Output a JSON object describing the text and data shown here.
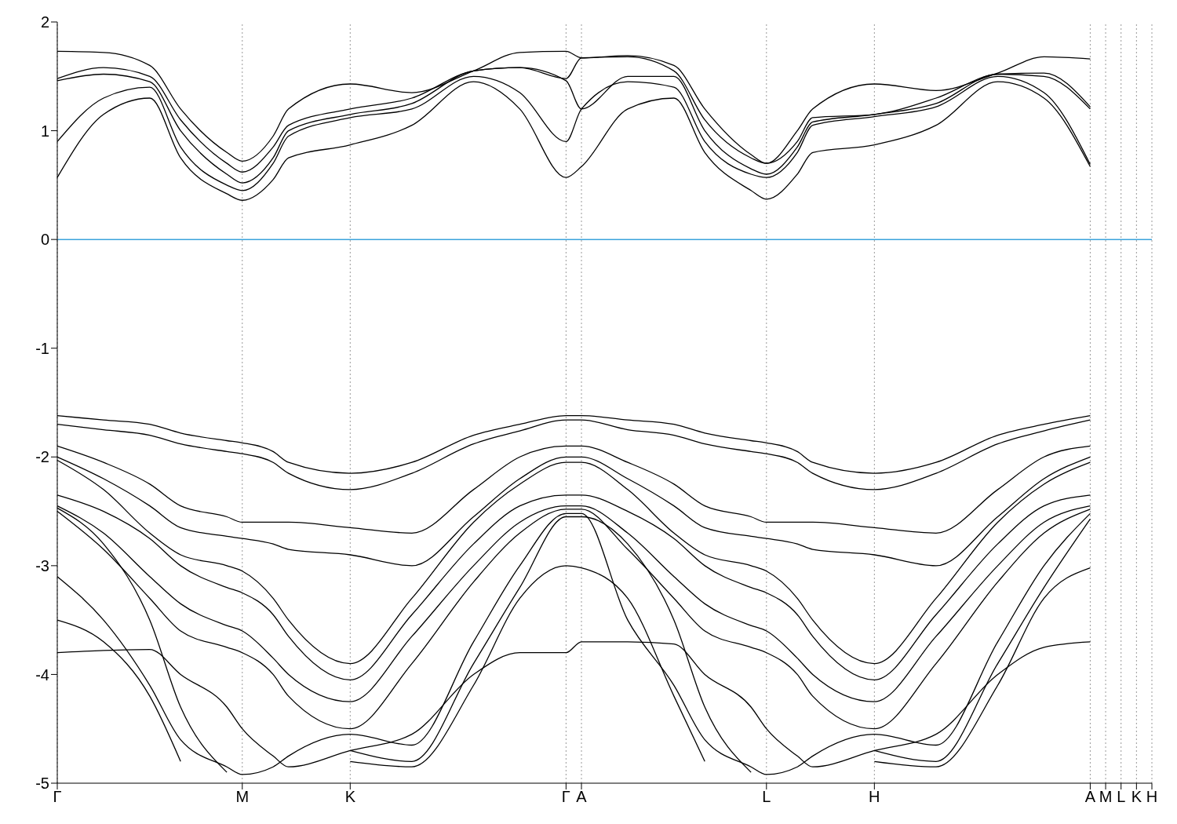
{
  "chart_data": {
    "type": "line",
    "marker": "none",
    "line_style": "solid",
    "grid": "x",
    "categories": [
      "Γ",
      null,
      null,
      null,
      null,
      null,
      null,
      null,
      null,
      null,
      null,
      null,
      "M",
      null,
      null,
      null,
      null,
      null,
      null,
      "K",
      null,
      null,
      null,
      null,
      null,
      null,
      null,
      null,
      null,
      null,
      null,
      null,
      null,
      "Γ",
      "A",
      null,
      null,
      null,
      null,
      null,
      null,
      null,
      null,
      null,
      null,
      null,
      "L",
      null,
      null,
      null,
      null,
      null,
      null,
      "H",
      null,
      null,
      null,
      null,
      null,
      null,
      null,
      null,
      null,
      null,
      null,
      null,
      null,
      "A",
      "M",
      "L",
      "K",
      "H"
    ],
    "ylim": [
      -5,
      2
    ],
    "yticks": [
      -5,
      -4,
      -3,
      -2,
      -1,
      0,
      1,
      2
    ],
    "ref_lines": [
      {
        "axis": "y",
        "value": 0,
        "color": "#3ba3dc"
      }
    ],
    "series": [
      {
        "color": "#000000",
        "values": [
          0.57,
          null,
          null,
          1.15,
          null,
          null,
          1.3,
          null,
          0.75,
          null,
          null,
          0.42,
          0.36,
          null,
          0.55,
          0.75,
          null,
          null,
          null,
          0.87,
          null,
          null,
          null,
          1.05,
          null,
          null,
          null,
          1.45,
          null,
          null,
          1.2,
          null,
          null,
          0.57,
          0.67,
          null,
          null,
          1.2,
          null,
          null,
          1.3,
          null,
          0.8,
          null,
          null,
          0.45,
          0.37,
          null,
          0.6,
          0.8,
          null,
          null,
          null,
          0.87,
          null,
          null,
          null,
          1.05,
          null,
          null,
          null,
          1.45,
          null,
          null,
          1.3,
          null,
          null,
          0.67,
          null,
          null,
          null,
          null
        ]
      },
      {
        "color": "#000000",
        "values": [
          0.9,
          null,
          null,
          1.3,
          null,
          null,
          1.4,
          null,
          0.85,
          null,
          null,
          0.5,
          0.45,
          null,
          0.7,
          0.95,
          null,
          null,
          null,
          1.12,
          null,
          null,
          null,
          1.2,
          null,
          null,
          null,
          1.5,
          null,
          null,
          1.35,
          null,
          null,
          0.9,
          1.2,
          null,
          null,
          1.45,
          null,
          null,
          1.4,
          null,
          0.9,
          null,
          null,
          0.6,
          0.57,
          null,
          0.8,
          1.05,
          null,
          null,
          null,
          1.13,
          null,
          null,
          null,
          1.22,
          null,
          null,
          null,
          1.5,
          null,
          null,
          1.35,
          null,
          null,
          0.69,
          null,
          null,
          null,
          null
        ]
      },
      {
        "color": "#000000",
        "values": [
          1.46,
          null,
          null,
          1.52,
          null,
          null,
          1.45,
          null,
          1,
          null,
          null,
          0.6,
          0.52,
          null,
          0.75,
          1,
          null,
          null,
          null,
          1.15,
          null,
          null,
          null,
          1.25,
          null,
          null,
          null,
          1.55,
          null,
          null,
          1.58,
          null,
          null,
          1.46,
          1.2,
          null,
          null,
          1.5,
          null,
          null,
          1.5,
          null,
          1,
          null,
          null,
          0.65,
          0.6,
          null,
          0.85,
          1.08,
          null,
          null,
          null,
          1.15,
          null,
          null,
          null,
          1.25,
          null,
          null,
          null,
          1.52,
          null,
          null,
          1.5,
          null,
          null,
          1.2,
          null,
          null,
          null,
          null
        ]
      },
      {
        "color": "#000000",
        "values": [
          1.48,
          null,
          null,
          1.58,
          null,
          null,
          1.5,
          null,
          1.1,
          null,
          null,
          0.7,
          0.62,
          null,
          0.85,
          1.05,
          null,
          null,
          null,
          1.2,
          null,
          null,
          null,
          1.3,
          null,
          null,
          null,
          1.55,
          null,
          null,
          1.58,
          null,
          null,
          1.48,
          1.67,
          null,
          null,
          1.68,
          null,
          null,
          1.55,
          null,
          1.1,
          null,
          null,
          0.75,
          0.7,
          null,
          0.9,
          1.12,
          null,
          null,
          null,
          1.15,
          null,
          null,
          null,
          1.3,
          null,
          null,
          null,
          1.52,
          null,
          null,
          1.53,
          null,
          null,
          1.22,
          null,
          null,
          null,
          null
        ]
      },
      {
        "color": "#000000",
        "values": [
          1.73,
          null,
          null,
          1.72,
          null,
          null,
          1.6,
          null,
          1.2,
          null,
          null,
          0.8,
          0.72,
          null,
          0.95,
          1.2,
          null,
          null,
          null,
          1.43,
          null,
          null,
          null,
          1.35,
          null,
          null,
          null,
          1.55,
          null,
          null,
          1.72,
          null,
          null,
          1.73,
          1.67,
          null,
          null,
          1.69,
          null,
          null,
          1.6,
          null,
          1.2,
          null,
          null,
          0.78,
          0.7,
          null,
          1,
          1.2,
          null,
          null,
          null,
          1.43,
          null,
          null,
          null,
          1.37,
          null,
          null,
          null,
          1.53,
          null,
          null,
          1.68,
          null,
          null,
          1.66,
          null,
          null,
          null,
          null
        ]
      },
      {
        "color": "#000000",
        "values": [
          -1.62,
          null,
          null,
          -1.66,
          null,
          null,
          -1.7,
          null,
          -1.78,
          null,
          null,
          -1.85,
          -1.87,
          null,
          -1.95,
          -2.05,
          null,
          null,
          null,
          -2.15,
          null,
          null,
          null,
          -2.05,
          null,
          null,
          null,
          -1.8,
          null,
          null,
          -1.7,
          null,
          null,
          -1.62,
          -1.62,
          null,
          null,
          -1.66,
          null,
          null,
          -1.7,
          null,
          -1.78,
          null,
          null,
          -1.85,
          -1.87,
          null,
          -1.95,
          -2.05,
          null,
          null,
          null,
          -2.15,
          null,
          null,
          null,
          -2.05,
          null,
          null,
          null,
          -1.8,
          null,
          null,
          -1.7,
          null,
          null,
          -1.62,
          null,
          null,
          null,
          null
        ]
      },
      {
        "color": "#000000",
        "values": [
          -1.7,
          null,
          null,
          -1.75,
          null,
          null,
          -1.8,
          null,
          -1.88,
          null,
          null,
          -1.95,
          -1.97,
          null,
          -2.05,
          -2.15,
          null,
          null,
          null,
          -2.3,
          null,
          null,
          null,
          -2.15,
          null,
          null,
          null,
          -1.88,
          null,
          null,
          -1.76,
          null,
          null,
          -1.66,
          -1.66,
          null,
          null,
          -1.75,
          null,
          null,
          -1.8,
          null,
          -1.88,
          null,
          null,
          -1.95,
          -1.97,
          null,
          -2.05,
          -2.15,
          null,
          null,
          null,
          -2.3,
          null,
          null,
          null,
          -2.15,
          null,
          null,
          null,
          -1.88,
          null,
          null,
          -1.76,
          null,
          null,
          -1.66,
          null,
          null,
          null,
          null
        ]
      },
      {
        "color": "#000000",
        "values": [
          -1.9,
          null,
          null,
          -2.05,
          null,
          null,
          -2.25,
          null,
          -2.45,
          null,
          null,
          -2.55,
          -2.6,
          null,
          -2.6,
          -2.6,
          null,
          null,
          null,
          -2.65,
          null,
          null,
          null,
          -2.7,
          null,
          null,
          null,
          -2.3,
          null,
          null,
          -2,
          null,
          null,
          -1.9,
          -1.9,
          null,
          null,
          -2.05,
          null,
          null,
          -2.25,
          null,
          -2.45,
          null,
          null,
          -2.55,
          -2.6,
          null,
          -2.6,
          -2.6,
          null,
          null,
          null,
          -2.65,
          null,
          null,
          null,
          -2.7,
          null,
          null,
          null,
          -2.3,
          null,
          null,
          -2,
          null,
          null,
          -1.9,
          null,
          null,
          null,
          null
        ]
      },
      {
        "color": "#000000",
        "values": [
          -2,
          null,
          null,
          -2.2,
          null,
          null,
          -2.45,
          null,
          -2.65,
          null,
          null,
          -2.73,
          -2.75,
          null,
          -2.8,
          -2.85,
          null,
          null,
          null,
          -2.9,
          null,
          null,
          null,
          -3,
          null,
          null,
          null,
          -2.55,
          null,
          null,
          -2.2,
          null,
          null,
          -2,
          -2,
          null,
          null,
          -2.2,
          null,
          null,
          -2.45,
          null,
          -2.65,
          null,
          null,
          -2.73,
          -2.75,
          null,
          -2.8,
          -2.85,
          null,
          null,
          null,
          -2.9,
          null,
          null,
          null,
          -3,
          null,
          null,
          null,
          -2.55,
          null,
          null,
          -2.2,
          null,
          null,
          -2,
          null,
          null,
          null,
          null
        ]
      },
      {
        "color": "#000000",
        "values": [
          -2.03,
          null,
          null,
          -2.3,
          null,
          null,
          -2.7,
          null,
          -2.9,
          null,
          null,
          -3,
          -3.05,
          null,
          -3.3,
          -3.5,
          null,
          null,
          null,
          -3.9,
          null,
          null,
          null,
          -3.3,
          null,
          null,
          null,
          -2.6,
          null,
          null,
          -2.25,
          null,
          null,
          -2.05,
          -2.05,
          null,
          null,
          -2.3,
          null,
          null,
          -2.7,
          null,
          -2.9,
          null,
          null,
          -3,
          -3.05,
          null,
          -3.3,
          -3.5,
          null,
          null,
          null,
          -3.9,
          null,
          null,
          null,
          -3.3,
          null,
          null,
          null,
          -2.6,
          null,
          null,
          -2.25,
          null,
          null,
          -2.05,
          null,
          null,
          null,
          null
        ]
      },
      {
        "color": "#000000",
        "values": [
          -2.35,
          null,
          null,
          -2.5,
          null,
          null,
          -2.75,
          null,
          -3,
          null,
          null,
          -3.2,
          -3.25,
          null,
          -3.45,
          -3.65,
          null,
          null,
          null,
          -4.05,
          null,
          null,
          null,
          -3.45,
          null,
          null,
          null,
          -2.8,
          null,
          null,
          -2.45,
          null,
          null,
          -2.35,
          -2.35,
          null,
          null,
          -2.5,
          null,
          null,
          -2.75,
          null,
          -3,
          null,
          null,
          -3.2,
          -3.25,
          null,
          -3.45,
          -3.65,
          null,
          null,
          null,
          -4.05,
          null,
          null,
          null,
          -3.45,
          null,
          null,
          null,
          -2.8,
          null,
          null,
          -2.45,
          null,
          null,
          -2.35,
          null,
          null,
          null,
          null
        ]
      },
      {
        "color": "#000000",
        "values": [
          -2.45,
          null,
          null,
          -2.7,
          null,
          null,
          -3.1,
          null,
          -3.35,
          null,
          null,
          -3.55,
          -3.6,
          null,
          -3.85,
          -4,
          null,
          null,
          null,
          -4.25,
          null,
          null,
          null,
          -3.65,
          null,
          null,
          null,
          -3,
          null,
          null,
          -2.6,
          null,
          null,
          -2.45,
          -2.45,
          null,
          null,
          -2.7,
          null,
          null,
          -3.1,
          null,
          -3.35,
          null,
          null,
          -3.55,
          -3.6,
          null,
          -3.85,
          -4,
          null,
          null,
          null,
          -4.25,
          null,
          null,
          null,
          -3.65,
          null,
          null,
          null,
          -3,
          null,
          null,
          -2.6,
          null,
          null,
          -2.45,
          null,
          null,
          null,
          null
        ]
      },
      {
        "color": "#000000",
        "values": [
          -2.5,
          null,
          null,
          -2.85,
          null,
          null,
          -3.3,
          null,
          -3.6,
          null,
          null,
          -3.75,
          -3.8,
          null,
          -4,
          -4.2,
          null,
          null,
          null,
          -4.5,
          null,
          null,
          null,
          -3.9,
          null,
          null,
          null,
          -3.15,
          null,
          null,
          -2.7,
          null,
          null,
          -2.48,
          -2.48,
          null,
          null,
          -2.85,
          null,
          null,
          -3.3,
          null,
          -3.6,
          null,
          null,
          -3.75,
          -3.8,
          null,
          -4,
          -4.2,
          null,
          null,
          null,
          -4.5,
          null,
          null,
          null,
          -3.9,
          null,
          null,
          null,
          -3.15,
          null,
          null,
          -2.7,
          null,
          null,
          -2.48,
          null,
          null,
          null,
          null
        ]
      },
      {
        "color": "#000000",
        "values": [
          -3.8,
          null,
          null,
          -3.78,
          null,
          null,
          -3.77,
          null,
          -4,
          null,
          null,
          -4.3,
          -4.5,
          null,
          -4.75,
          -4.85,
          null,
          null,
          null,
          -4.7,
          null,
          null,
          null,
          -4.55,
          null,
          null,
          null,
          -4,
          null,
          null,
          -3.8,
          null,
          null,
          -3.8,
          -3.7,
          null,
          null,
          -3.7,
          null,
          null,
          -3.72,
          null,
          -4,
          null,
          null,
          -4.3,
          -4.5,
          null,
          -4.75,
          -4.85,
          null,
          null,
          null,
          -4.7,
          null,
          null,
          null,
          -4.55,
          null,
          null,
          null,
          -4,
          null,
          null,
          -3.75,
          null,
          null,
          -3.7,
          null,
          null,
          null,
          null
        ]
      },
      {
        "color": "#000000",
        "values": [
          -3.1,
          null,
          null,
          -3.5,
          null,
          null,
          -4.1,
          null,
          -4.6,
          null,
          null,
          -4.85,
          -4.92,
          null,
          -4.85,
          -4.75,
          null,
          null,
          null,
          -4.55,
          null,
          null,
          null,
          -4.65,
          null,
          null,
          null,
          -3.7,
          null,
          null,
          -3,
          null,
          null,
          -2.52,
          -2.52,
          null,
          null,
          -3.5,
          null,
          null,
          -4.1,
          null,
          -4.6,
          null,
          null,
          -4.85,
          -4.92,
          null,
          -4.85,
          -4.75,
          null,
          null,
          null,
          -4.55,
          null,
          null,
          null,
          -4.65,
          null,
          null,
          null,
          -3.7,
          null,
          null,
          -3,
          null,
          null,
          -2.52,
          null,
          null,
          null,
          null
        ]
      },
      {
        "color": "#000000",
        "values": [
          -2.47,
          null,
          null,
          -2.8,
          null,
          null,
          -3.5,
          null,
          -4.3,
          null,
          null,
          -4.9,
          null,
          null,
          null,
          null,
          null,
          null,
          null,
          null,
          null,
          null,
          null,
          null,
          null,
          null,
          null,
          null,
          null,
          null,
          null,
          null,
          null,
          null,
          null,
          null,
          null,
          null,
          null,
          null,
          null,
          null,
          null,
          null,
          null,
          null,
          null,
          null,
          null,
          null,
          null,
          null,
          null,
          null,
          null,
          null,
          null,
          null,
          null,
          null,
          null,
          null,
          null,
          null,
          null,
          null,
          null,
          null,
          null,
          null,
          null,
          null
        ]
      },
      {
        "color": "#000000",
        "values": [
          null,
          null,
          null,
          null,
          null,
          null,
          null,
          null,
          null,
          null,
          null,
          null,
          null,
          null,
          null,
          null,
          null,
          null,
          null,
          -4.7,
          null,
          null,
          null,
          -4.8,
          null,
          null,
          null,
          -3.9,
          null,
          null,
          -3.2,
          null,
          null,
          -2.55,
          -2.55,
          null,
          null,
          -2.8,
          null,
          null,
          -3.5,
          null,
          -4.3,
          null,
          null,
          -4.9,
          null,
          null,
          null,
          null,
          null,
          null,
          null,
          null,
          null,
          null,
          null,
          null,
          null,
          null,
          null,
          null,
          null,
          null,
          null,
          null,
          null,
          null,
          null,
          null,
          null,
          null
        ]
      },
      {
        "color": "#000000",
        "values": [
          null,
          null,
          null,
          null,
          null,
          null,
          null,
          null,
          null,
          null,
          null,
          null,
          null,
          null,
          null,
          null,
          null,
          null,
          null,
          null,
          null,
          null,
          null,
          null,
          null,
          null,
          null,
          null,
          null,
          null,
          null,
          null,
          null,
          null,
          null,
          null,
          null,
          null,
          null,
          null,
          null,
          null,
          null,
          null,
          null,
          null,
          null,
          null,
          null,
          null,
          null,
          null,
          null,
          -4.7,
          null,
          null,
          null,
          -4.8,
          null,
          null,
          null,
          -3.9,
          null,
          null,
          -3.2,
          null,
          null,
          -2.57,
          null,
          null,
          null,
          null
        ]
      },
      {
        "color": "#000000",
        "values": [
          -3.5,
          null,
          null,
          -3.7,
          null,
          null,
          -4.2,
          null,
          -4.8,
          null,
          null,
          null,
          null,
          null,
          null,
          null,
          null,
          null,
          null,
          null,
          null,
          null,
          null,
          null,
          null,
          null,
          null,
          null,
          null,
          null,
          null,
          null,
          null,
          null,
          null,
          null,
          null,
          null,
          null,
          null,
          null,
          null,
          null,
          null,
          null,
          null,
          null,
          null,
          null,
          null,
          null,
          null,
          null,
          null,
          null,
          null,
          null,
          null,
          null,
          null,
          null,
          null,
          null,
          null,
          null,
          null,
          null,
          null,
          null,
          null,
          null,
          null
        ]
      },
      {
        "color": "#000000",
        "values": [
          null,
          null,
          null,
          null,
          null,
          null,
          null,
          null,
          null,
          null,
          null,
          null,
          null,
          null,
          null,
          null,
          null,
          null,
          null,
          -4.8,
          null,
          null,
          null,
          -4.85,
          null,
          null,
          null,
          -4.1,
          null,
          null,
          -3.3,
          null,
          null,
          -3,
          -3.02,
          null,
          null,
          -3.3,
          null,
          null,
          -4.2,
          null,
          -4.8,
          null,
          null,
          null,
          null,
          null,
          null,
          null,
          null,
          null,
          null,
          null,
          null,
          null,
          null,
          null,
          null,
          null,
          null,
          null,
          null,
          null,
          null,
          null,
          null,
          null,
          null,
          null,
          null,
          null
        ]
      },
      {
        "color": "#000000",
        "values": [
          null,
          null,
          null,
          null,
          null,
          null,
          null,
          null,
          null,
          null,
          null,
          null,
          null,
          null,
          null,
          null,
          null,
          null,
          null,
          null,
          null,
          null,
          null,
          null,
          null,
          null,
          null,
          null,
          null,
          null,
          null,
          null,
          null,
          null,
          null,
          null,
          null,
          null,
          null,
          null,
          null,
          null,
          null,
          null,
          null,
          null,
          null,
          null,
          null,
          null,
          null,
          null,
          null,
          -4.8,
          null,
          null,
          null,
          -4.85,
          null,
          null,
          null,
          -4.1,
          null,
          null,
          -3.3,
          null,
          null,
          -3.02,
          null,
          null,
          null,
          null
        ]
      }
    ]
  }
}
